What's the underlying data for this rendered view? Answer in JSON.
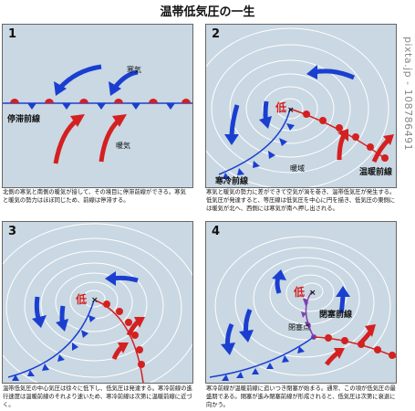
{
  "title": "温帯低気圧の一生",
  "watermark": "pixta.jp - 108786491",
  "panels": [
    {
      "number": "1",
      "labels": {
        "cold_air": "寒気",
        "warm_air": "暖気",
        "front": "停滞前線"
      },
      "caption": "北側の寒気と南側の暖気が接して、その境目に停滞前線ができる。寒気と暖気の勢力はほぼ同じため、前線は停滞する。"
    },
    {
      "number": "2",
      "labels": {
        "low": "低",
        "cold_front": "寒冷前線",
        "warm_sector": "暖域",
        "warm_front": "温暖前線"
      },
      "caption": "寒気と暖気の勢力に差ができて空気が渦を巻き、温帯低気圧が発生する。低気圧が発達すると、等圧線は低気圧を中心に円を描き、低気圧の東側には暖気が北へ、西側には寒気が南へ押し出される。"
    },
    {
      "number": "3",
      "labels": {
        "low": "低"
      },
      "caption": "温帯低気圧の中心気圧は徐々に低下し、低気圧は発達する。寒冷前線の進行速度は温暖前線のそれより速いため、寒冷前線は次第に温暖前線に近づく。"
    },
    {
      "number": "4",
      "labels": {
        "low": "低",
        "occluded_front": "閉塞前線",
        "occlusion_point": "閉塞点"
      },
      "caption": "寒冷前線が温暖前線に追いつき閉塞が始まる。通常、この頃が低気圧の最盛期である。閉塞が進み閉塞前線が形成されると、低気圧は次第に衰退に向かう。"
    }
  ],
  "colors": {
    "panel_bg": "#c9d8e3",
    "cold": "#1a3fd0",
    "warm": "#d42020",
    "occluded": "#8040b0",
    "isobar": "#ffffff"
  }
}
